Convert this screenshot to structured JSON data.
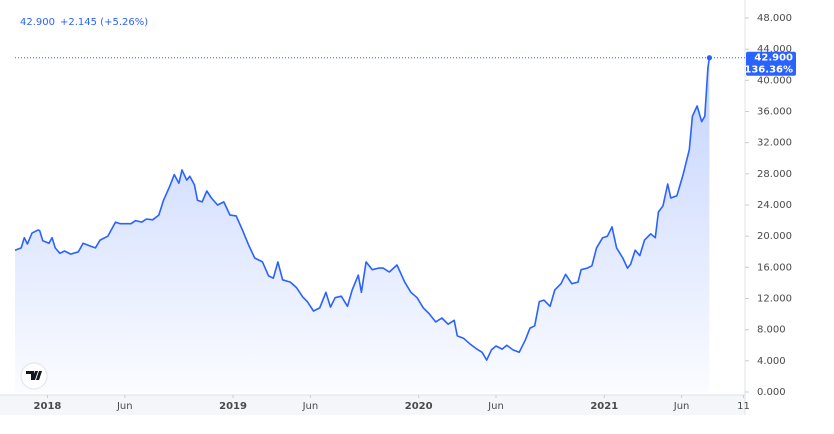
{
  "chart_data": {
    "type": "line",
    "header_price": "42.900",
    "header_change": "+2.145 (+5.26%)",
    "price_label": "42.900",
    "percent_label": "136.36%",
    "color": "#2962ff",
    "grid": false,
    "x": [
      -2.1,
      -1.7,
      -1.5,
      -1.3,
      -1.0,
      -0.6,
      -0.5,
      -0.3,
      0.1,
      0.3,
      0.5,
      0.8,
      1.1,
      1.5,
      2.0,
      2.3,
      2.8,
      3.1,
      3.4,
      3.9,
      4.4,
      4.7,
      5.4,
      5.7,
      6.1,
      6.4,
      6.8,
      7.2,
      7.5,
      7.9,
      8.2,
      8.5,
      8.7,
      9.0,
      9.2,
      9.5,
      9.7,
      10.0,
      10.3,
      10.6,
      11.0,
      11.4,
      11.8,
      12.2,
      12.6,
      13.0,
      13.4,
      13.9,
      14.3,
      14.6,
      14.9,
      15.2,
      15.7,
      16.1,
      16.5,
      16.8,
      17.2,
      17.6,
      18.0,
      18.3,
      18.6,
      19.0,
      19.4,
      19.7,
      20.1,
      20.3,
      20.6,
      21.0,
      21.4,
      21.7,
      22.1,
      22.6,
      23.1,
      23.5,
      23.9,
      24.3,
      24.7,
      25.1,
      25.5,
      25.9,
      26.3,
      26.5,
      26.9,
      27.3,
      27.7,
      28.1,
      28.4,
      28.7,
      29.0,
      29.4,
      29.7,
      30.1,
      30.5,
      30.9,
      31.2,
      31.5,
      31.8,
      32.1,
      32.5,
      32.8,
      33.2,
      33.5,
      33.9,
      34.3,
      34.5,
      34.9,
      35.2,
      35.5,
      35.9,
      36.2,
      36.5,
      36.8,
      37.2,
      37.5,
      37.7,
      38.0,
      38.3,
      38.6,
      39.0,
      39.3,
      39.5,
      39.8,
      40.1,
      40.3,
      40.7,
      41.1,
      41.5,
      41.7,
      42.0,
      42.3,
      42.5,
      42.7,
      42.8
    ],
    "values": [
      18.2,
      18.5,
      19.8,
      19.0,
      20.4,
      20.8,
      20.7,
      19.4,
      19.1,
      19.8,
      18.5,
      17.8,
      18.1,
      17.7,
      18.0,
      19.1,
      18.7,
      18.5,
      19.5,
      20.0,
      21.8,
      21.6,
      21.6,
      22.0,
      21.8,
      22.2,
      22.1,
      22.7,
      24.6,
      26.4,
      27.9,
      26.8,
      28.5,
      27.2,
      27.7,
      26.6,
      24.6,
      24.4,
      25.8,
      24.9,
      24.0,
      24.4,
      22.7,
      22.6,
      20.8,
      18.9,
      17.2,
      16.7,
      14.9,
      14.6,
      16.7,
      14.4,
      14.1,
      13.4,
      12.2,
      11.6,
      10.4,
      10.8,
      12.8,
      10.9,
      12.1,
      12.3,
      11.0,
      13.1,
      15.0,
      12.8,
      16.7,
      15.7,
      15.9,
      15.9,
      15.4,
      16.3,
      14.1,
      12.8,
      12.1,
      10.8,
      10.0,
      9.0,
      9.5,
      8.7,
      9.2,
      7.2,
      6.9,
      6.2,
      5.6,
      5.1,
      4.1,
      5.4,
      5.9,
      5.5,
      6.0,
      5.4,
      5.1,
      6.7,
      8.2,
      8.5,
      11.6,
      11.8,
      11.0,
      13.1,
      13.9,
      15.1,
      13.9,
      14.1,
      15.7,
      15.9,
      16.2,
      18.5,
      19.8,
      20.0,
      21.2,
      18.5,
      17.2,
      15.9,
      16.4,
      18.2,
      17.5,
      19.5,
      20.3,
      19.8,
      23.1,
      23.9,
      26.7,
      24.9,
      25.2,
      27.9,
      31.1,
      35.4,
      36.7,
      34.7,
      35.4,
      41.6,
      42.9
    ],
    "xlim": [
      -2.1,
      45.1
    ],
    "xticks": [
      {
        "value": 0,
        "label": "2018"
      },
      {
        "value": 5,
        "label": "Jun"
      },
      {
        "value": 12,
        "label": "2019"
      },
      {
        "value": 17,
        "label": "Jun"
      },
      {
        "value": 24,
        "label": "2020"
      },
      {
        "value": 29,
        "label": "Jun"
      },
      {
        "value": 36,
        "label": "2021"
      },
      {
        "value": 41,
        "label": "Jun"
      },
      {
        "value": 45,
        "label": "11"
      }
    ],
    "ylim": [
      0,
      48
    ],
    "yticks": [
      {
        "value": 0,
        "label": "0.000"
      },
      {
        "value": 4,
        "label": "4.000"
      },
      {
        "value": 8,
        "label": "8.000"
      },
      {
        "value": 12,
        "label": "12.000"
      },
      {
        "value": 16,
        "label": "16.000"
      },
      {
        "value": 20,
        "label": "20.000"
      },
      {
        "value": 24,
        "label": "24.000"
      },
      {
        "value": 28,
        "label": "28.000"
      },
      {
        "value": 32,
        "label": "32.000"
      },
      {
        "value": 36,
        "label": "36.000"
      },
      {
        "value": 40,
        "label": "40.000"
      },
      {
        "value": 44,
        "label": "44.000"
      },
      {
        "value": 48,
        "label": "48.000"
      }
    ]
  }
}
